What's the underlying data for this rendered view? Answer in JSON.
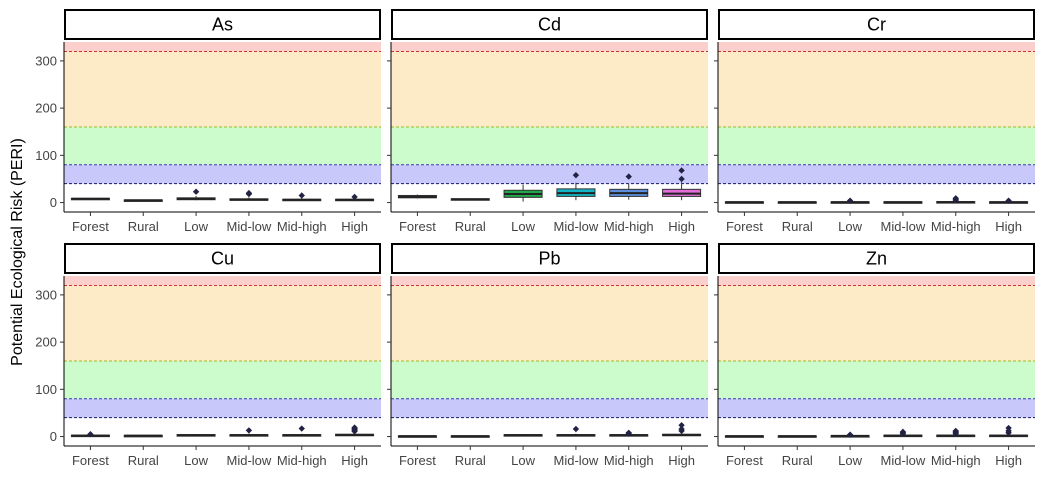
{
  "chart_data": {
    "type": "box",
    "ylabel": "Potential Ecological Risk (PERI)",
    "categories": [
      "Forest",
      "Rural",
      "Low",
      "Mid-low",
      "Mid-high",
      "High"
    ],
    "yticks": [
      0,
      100,
      200,
      300
    ],
    "ylim": [
      -20,
      340
    ],
    "grid": false,
    "risk_bands": [
      {
        "from": 0,
        "to": 40,
        "color": "#ffffff"
      },
      {
        "from": 40,
        "to": 80,
        "color": "#c8c8fa"
      },
      {
        "from": 80,
        "to": 160,
        "color": "#ccfccc"
      },
      {
        "from": 160,
        "to": 320,
        "color": "#fdebc8"
      },
      {
        "from": 320,
        "to": 340,
        "color": "#fbd0cc"
      }
    ],
    "thresholds": [
      {
        "value": 40,
        "color": "#1a1a66"
      },
      {
        "value": 80,
        "color": "#3a3ab0"
      },
      {
        "value": 160,
        "color": "#a0b820"
      },
      {
        "value": 320,
        "color": "#cc3333"
      }
    ],
    "category_colors": [
      "#2e2e2e",
      "#2e2e2e",
      "#1fa84a",
      "#12b5c4",
      "#5b8fdc",
      "#e36cd8"
    ],
    "panels": [
      {
        "title": "As",
        "boxes": [
          {
            "category": "Forest",
            "min": 7,
            "q1": 7,
            "median": 8,
            "q3": 9,
            "max": 10,
            "outliers": []
          },
          {
            "category": "Rural",
            "min": 4,
            "q1": 4.5,
            "median": 5,
            "q3": 5.5,
            "max": 6,
            "outliers": []
          },
          {
            "category": "Low",
            "min": 5,
            "q1": 6,
            "median": 8,
            "q3": 10,
            "max": 14,
            "outliers": [
              23
            ]
          },
          {
            "category": "Mid-low",
            "min": 4,
            "q1": 5,
            "median": 6,
            "q3": 8,
            "max": 11,
            "outliers": [
              18,
              20
            ]
          },
          {
            "category": "Mid-high",
            "min": 4,
            "q1": 5,
            "median": 6,
            "q3": 7,
            "max": 10,
            "outliers": [
              15
            ]
          },
          {
            "category": "High",
            "min": 3,
            "q1": 4.5,
            "median": 6,
            "q3": 7,
            "max": 9,
            "outliers": [
              12
            ]
          }
        ]
      },
      {
        "title": "Cd",
        "boxes": [
          {
            "category": "Forest",
            "min": 9,
            "q1": 10,
            "median": 12,
            "q3": 15,
            "max": 17,
            "outliers": []
          },
          {
            "category": "Rural",
            "min": 5,
            "q1": 6,
            "median": 7,
            "q3": 8,
            "max": 9,
            "outliers": []
          },
          {
            "category": "Low",
            "min": 2,
            "q1": 11,
            "median": 18,
            "q3": 26,
            "max": 38,
            "outliers": []
          },
          {
            "category": "Mid-low",
            "min": 5,
            "q1": 13,
            "median": 20,
            "q3": 29,
            "max": 42,
            "outliers": [
              58
            ]
          },
          {
            "category": "Mid-high",
            "min": 6,
            "q1": 13,
            "median": 20,
            "q3": 28,
            "max": 40,
            "outliers": [
              55
            ]
          },
          {
            "category": "High",
            "min": 5,
            "q1": 13,
            "median": 19,
            "q3": 28,
            "max": 43,
            "outliers": [
              50,
              68
            ]
          }
        ]
      },
      {
        "title": "Cr",
        "boxes": [
          {
            "category": "Forest",
            "min": 0,
            "q1": 0.5,
            "median": 1,
            "q3": 1.5,
            "max": 2,
            "outliers": []
          },
          {
            "category": "Rural",
            "min": 0,
            "q1": 0.5,
            "median": 1,
            "q3": 1.5,
            "max": 2,
            "outliers": []
          },
          {
            "category": "Low",
            "min": 0,
            "q1": 0.5,
            "median": 1,
            "q3": 1.5,
            "max": 2,
            "outliers": [
              4
            ]
          },
          {
            "category": "Mid-low",
            "min": 0,
            "q1": 0.5,
            "median": 1,
            "q3": 1.5,
            "max": 2,
            "outliers": []
          },
          {
            "category": "Mid-high",
            "min": 0,
            "q1": 0.5,
            "median": 1,
            "q3": 2,
            "max": 3,
            "outliers": [
              5,
              7,
              9
            ]
          },
          {
            "category": "High",
            "min": 0,
            "q1": 0.5,
            "median": 1,
            "q3": 1.5,
            "max": 2,
            "outliers": [
              4
            ]
          }
        ]
      },
      {
        "title": "Cu",
        "boxes": [
          {
            "category": "Forest",
            "min": 1,
            "q1": 1.5,
            "median": 2,
            "q3": 3,
            "max": 4,
            "outliers": [
              5
            ]
          },
          {
            "category": "Rural",
            "min": 1,
            "q1": 1.5,
            "median": 2,
            "q3": 2.5,
            "max": 3,
            "outliers": []
          },
          {
            "category": "Low",
            "min": 1,
            "q1": 2,
            "median": 3,
            "q3": 4,
            "max": 5,
            "outliers": []
          },
          {
            "category": "Mid-low",
            "min": 1,
            "q1": 2,
            "median": 3,
            "q3": 4,
            "max": 6,
            "outliers": [
              13
            ]
          },
          {
            "category": "Mid-high",
            "min": 1,
            "q1": 2,
            "median": 3,
            "q3": 4,
            "max": 6,
            "outliers": [
              17
            ]
          },
          {
            "category": "High",
            "min": 1,
            "q1": 2,
            "median": 3,
            "q3": 5,
            "max": 8,
            "outliers": [
              11,
              13,
              15,
              17,
              19
            ]
          }
        ]
      },
      {
        "title": "Pb",
        "boxes": [
          {
            "category": "Forest",
            "min": 0,
            "q1": 0.5,
            "median": 1,
            "q3": 1.5,
            "max": 2,
            "outliers": []
          },
          {
            "category": "Rural",
            "min": 0,
            "q1": 0.5,
            "median": 1,
            "q3": 1.5,
            "max": 2,
            "outliers": []
          },
          {
            "category": "Low",
            "min": 1,
            "q1": 2,
            "median": 3,
            "q3": 4,
            "max": 5,
            "outliers": []
          },
          {
            "category": "Mid-low",
            "min": 1,
            "q1": 2,
            "median": 3,
            "q3": 4,
            "max": 6,
            "outliers": [
              16
            ]
          },
          {
            "category": "Mid-high",
            "min": 1,
            "q1": 2,
            "median": 3,
            "q3": 4,
            "max": 5,
            "outliers": [
              6,
              8
            ]
          },
          {
            "category": "High",
            "min": 1,
            "q1": 2,
            "median": 3,
            "q3": 5,
            "max": 7,
            "outliers": [
              12,
              16,
              24
            ]
          }
        ]
      },
      {
        "title": "Zn",
        "boxes": [
          {
            "category": "Forest",
            "min": 0,
            "q1": 0.5,
            "median": 1,
            "q3": 1.5,
            "max": 2,
            "outliers": []
          },
          {
            "category": "Rural",
            "min": 0,
            "q1": 0.5,
            "median": 1,
            "q3": 1.5,
            "max": 2,
            "outliers": []
          },
          {
            "category": "Low",
            "min": 0,
            "q1": 1,
            "median": 1.5,
            "q3": 2,
            "max": 3,
            "outliers": [
              4
            ]
          },
          {
            "category": "Mid-low",
            "min": 0,
            "q1": 1,
            "median": 2,
            "q3": 3,
            "max": 4,
            "outliers": [
              6,
              8,
              10
            ]
          },
          {
            "category": "Mid-high",
            "min": 0,
            "q1": 1,
            "median": 2,
            "q3": 3,
            "max": 4,
            "outliers": [
              6,
              8,
              10,
              12
            ]
          },
          {
            "category": "High",
            "min": 0,
            "q1": 1,
            "median": 2,
            "q3": 3,
            "max": 5,
            "outliers": [
              8,
              12,
              18
            ]
          }
        ]
      }
    ]
  }
}
